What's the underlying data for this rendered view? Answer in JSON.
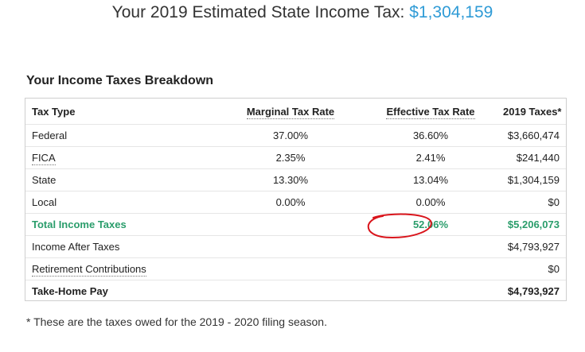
{
  "header": {
    "prefix": "Your 2019 Estimated State Income Tax:",
    "amount": "$1,304,159"
  },
  "breakdown": {
    "title": "Your Income Taxes Breakdown",
    "columns": [
      "Tax Type",
      "Marginal Tax Rate",
      "Effective Tax Rate",
      "2019 Taxes*"
    ],
    "rows": [
      {
        "type": "Federal",
        "marginal": "37.00%",
        "effective": "36.60%",
        "taxes": "$3,660,474"
      },
      {
        "type": "FICA",
        "marginal": "2.35%",
        "effective": "2.41%",
        "taxes": "$241,440"
      },
      {
        "type": "State",
        "marginal": "13.30%",
        "effective": "13.04%",
        "taxes": "$1,304,159"
      },
      {
        "type": "Local",
        "marginal": "0.00%",
        "effective": "0.00%",
        "taxes": "$0"
      }
    ],
    "total": {
      "label": "Total Income Taxes",
      "effective": "52.06%",
      "taxes": "$5,206,073"
    },
    "after_taxes": {
      "label": "Income After Taxes",
      "value": "$4,793,927"
    },
    "retirement": {
      "label": "Retirement Contributions",
      "value": "$0"
    },
    "take_home": {
      "label": "Take-Home Pay",
      "value": "$4,793,927"
    }
  },
  "footnote": "* These are the taxes owed for the 2019 - 2020 filing season.",
  "colors": {
    "amount": "#2f9bd6",
    "total": "#2a9d6b",
    "annotation": "#d9141b"
  }
}
